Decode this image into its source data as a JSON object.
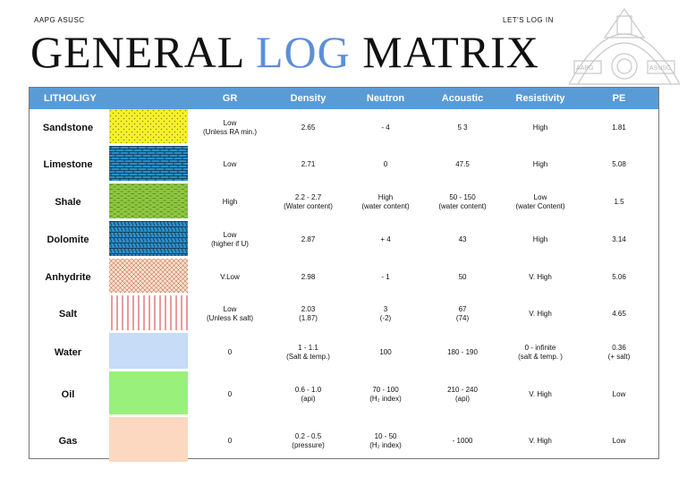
{
  "header": {
    "org": "AAPG ASUSC",
    "tagline": "LET'S LOG IN",
    "title_part1": "GENERAL",
    "title_part2": "LOG",
    "title_part3": "MATRIX",
    "seal_text_left": "AAPG",
    "seal_text_right": "ASUSC"
  },
  "columns": [
    "LITHOLIGY",
    "GR",
    "Density",
    "Neutron",
    "Acoustic",
    "Resistivity",
    "PE"
  ],
  "colors": {
    "header_bg": "#5b9bd5",
    "title_accent": "#5b8fd9"
  },
  "rows": [
    {
      "name": "Sandstone",
      "pattern": "dots-yellow",
      "gr": [
        "Low",
        "(Unless RA min.)"
      ],
      "density": [
        "2.65"
      ],
      "neutron": [
        "- 4"
      ],
      "acoustic": [
        "5 3"
      ],
      "resistivity": [
        "High"
      ],
      "pe": [
        "1.81"
      ]
    },
    {
      "name": "Limestone",
      "pattern": "brick-blue",
      "gr": [
        "Low"
      ],
      "density": [
        "2.71"
      ],
      "neutron": [
        "0"
      ],
      "acoustic": [
        "47.5"
      ],
      "resistivity": [
        "High"
      ],
      "pe": [
        "5.08"
      ]
    },
    {
      "name": "Shale",
      "pattern": "dashes-green",
      "gr": [
        "High"
      ],
      "density": [
        "2.2 -  2.7",
        "(Water content)"
      ],
      "neutron": [
        "High",
        "(water content)"
      ],
      "acoustic": [
        "50 - 150",
        "(water content)"
      ],
      "resistivity": [
        "Low",
        "(water Content)"
      ],
      "pe": [
        "1.5"
      ]
    },
    {
      "name": "Dolomite",
      "pattern": "rhomb-blue",
      "gr": [
        "Low",
        "(higher if U)"
      ],
      "density": [
        "2.87"
      ],
      "neutron": [
        "+ 4"
      ],
      "acoustic": [
        "43"
      ],
      "resistivity": [
        "High"
      ],
      "pe": [
        "3.14"
      ]
    },
    {
      "name": "Anhydrite",
      "pattern": "hatch-pink",
      "gr": [
        "V.Low"
      ],
      "density": [
        "2.98"
      ],
      "neutron": [
        "- 1"
      ],
      "acoustic": [
        "50"
      ],
      "resistivity": [
        "V. High"
      ],
      "pe": [
        "5.06"
      ]
    },
    {
      "name": "Salt",
      "pattern": "lines-red",
      "gr": [
        "Low",
        "(Unless K salt)"
      ],
      "density": [
        "2.03",
        "(1.87)"
      ],
      "neutron": [
        "3",
        "(-2)"
      ],
      "acoustic": [
        "67",
        "(74)"
      ],
      "resistivity": [
        "V. High"
      ],
      "pe": [
        "4.65"
      ]
    },
    {
      "name": "Water",
      "pattern": "solid-lightblue",
      "gr": [
        "0"
      ],
      "density": [
        "1 - 1.1",
        "(Salt & temp.)"
      ],
      "neutron": [
        "100"
      ],
      "acoustic": [
        "180 - 190"
      ],
      "resistivity": [
        "0 - infinite",
        "(salt & temp. )"
      ],
      "pe": [
        "0.36",
        "(+ salt)"
      ]
    },
    {
      "name": "Oil",
      "pattern": "solid-green",
      "gr": [
        "0"
      ],
      "density": [
        "0.6 - 1.0",
        "(api)"
      ],
      "neutron": [
        "70 - 100",
        "(H₂ index)"
      ],
      "acoustic": [
        "210 - 240",
        "(api)"
      ],
      "resistivity": [
        "V. High"
      ],
      "pe": [
        "Low"
      ]
    },
    {
      "name": "Gas",
      "pattern": "solid-peach",
      "gr": [
        "0"
      ],
      "density": [
        "0.2 - 0.5",
        "(pressure)"
      ],
      "neutron": [
        "10 - 50",
        "(H₂ index)"
      ],
      "acoustic": [
        "- 1000"
      ],
      "resistivity": [
        "V. High"
      ],
      "pe": [
        "Low"
      ]
    }
  ]
}
